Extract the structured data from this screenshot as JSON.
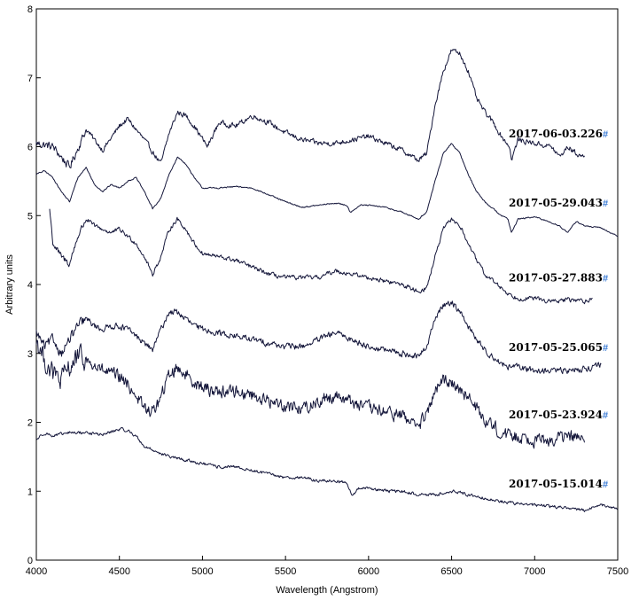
{
  "chart_data": {
    "type": "line",
    "title": "",
    "xlabel": "Wavelength (Angstrom)",
    "ylabel": "Arbitrary units",
    "xlim": [
      4000,
      7500
    ],
    "ylim": [
      0,
      8
    ],
    "xticks": [
      "4000",
      "4500",
      "5000",
      "5500",
      "6000",
      "6500",
      "7000",
      "7500"
    ],
    "yticks": [
      "0",
      "1",
      "2",
      "3",
      "4",
      "5",
      "6",
      "7",
      "8"
    ],
    "grid": false,
    "legend": "inline labels at right end of each spectrum",
    "label_marker": "#",
    "series": [
      {
        "name": "2017-06-03.226",
        "color": "#14163a",
        "noise": 0.06,
        "x": [
          4000,
          4100,
          4200,
          4300,
          4400,
          4500,
          4550,
          4650,
          4750,
          4800,
          4850,
          4900,
          4950,
          5030,
          5100,
          5200,
          5300,
          5400,
          5500,
          5600,
          5700,
          5800,
          5900,
          6000,
          6100,
          6200,
          6300,
          6350,
          6400,
          6450,
          6500,
          6550,
          6600,
          6650,
          6700,
          6750,
          6800,
          6850,
          6860,
          6900,
          7000,
          7100,
          7150,
          7200,
          7250,
          7300
        ],
        "y": [
          6.05,
          6.0,
          5.7,
          6.25,
          5.95,
          6.3,
          6.4,
          6.1,
          5.75,
          6.2,
          6.5,
          6.45,
          6.3,
          6.0,
          6.35,
          6.3,
          6.45,
          6.35,
          6.2,
          6.1,
          6.05,
          6.05,
          6.1,
          6.15,
          6.05,
          5.95,
          5.8,
          5.9,
          6.6,
          7.1,
          7.4,
          7.35,
          7.1,
          6.7,
          6.5,
          6.35,
          6.15,
          6.0,
          5.8,
          6.1,
          6.05,
          6.0,
          5.85,
          6.0,
          5.9,
          5.85
        ]
      },
      {
        "name": "2017-05-29.043",
        "color": "#14163a",
        "noise": 0.015,
        "x": [
          4000,
          4050,
          4100,
          4150,
          4200,
          4250,
          4300,
          4350,
          4400,
          4450,
          4500,
          4550,
          4600,
          4650,
          4700,
          4750,
          4800,
          4850,
          4900,
          4950,
          5000,
          5100,
          5200,
          5300,
          5400,
          5500,
          5600,
          5700,
          5800,
          5870,
          5890,
          5950,
          6000,
          6100,
          6200,
          6300,
          6350,
          6400,
          6450,
          6500,
          6550,
          6600,
          6650,
          6700,
          6750,
          6800,
          6840,
          6860,
          6900,
          7000,
          7100,
          7150,
          7200,
          7250,
          7300,
          7400,
          7500
        ],
        "y": [
          5.6,
          5.65,
          5.55,
          5.35,
          5.2,
          5.55,
          5.7,
          5.45,
          5.35,
          5.45,
          5.4,
          5.5,
          5.55,
          5.35,
          5.1,
          5.25,
          5.6,
          5.85,
          5.75,
          5.55,
          5.4,
          5.4,
          5.42,
          5.4,
          5.3,
          5.2,
          5.12,
          5.15,
          5.18,
          5.15,
          5.05,
          5.15,
          5.15,
          5.12,
          5.05,
          4.95,
          5.05,
          5.5,
          5.9,
          6.05,
          5.9,
          5.6,
          5.35,
          5.2,
          5.1,
          5.0,
          4.95,
          4.75,
          4.95,
          4.98,
          4.9,
          4.85,
          4.75,
          4.92,
          4.85,
          4.82,
          4.7
        ]
      },
      {
        "name": "2017-05-27.883",
        "color": "#14163a",
        "noise": 0.05,
        "x": [
          4080,
          4100,
          4150,
          4200,
          4250,
          4300,
          4350,
          4400,
          4450,
          4500,
          4550,
          4600,
          4650,
          4700,
          4750,
          4800,
          4850,
          4900,
          4950,
          5000,
          5100,
          5200,
          5300,
          5400,
          5500,
          5600,
          5700,
          5800,
          5900,
          6000,
          6100,
          6200,
          6300,
          6350,
          6400,
          6450,
          6500,
          6550,
          6600,
          6650,
          6700,
          6750,
          6800,
          6850,
          6900,
          7000,
          7100,
          7200,
          7300,
          7350
        ],
        "y": [
          5.1,
          4.6,
          4.4,
          4.3,
          4.7,
          4.95,
          4.85,
          4.8,
          4.75,
          4.8,
          4.7,
          4.6,
          4.4,
          4.15,
          4.4,
          4.8,
          4.95,
          4.8,
          4.6,
          4.45,
          4.4,
          4.35,
          4.25,
          4.15,
          4.1,
          4.1,
          4.1,
          4.2,
          4.15,
          4.1,
          4.05,
          4.0,
          3.9,
          3.95,
          4.4,
          4.8,
          4.95,
          4.85,
          4.6,
          4.35,
          4.15,
          4.05,
          3.95,
          3.85,
          3.8,
          3.8,
          3.75,
          3.78,
          3.76,
          3.8
        ]
      },
      {
        "name": "2017-05-25.065",
        "color": "#14163a",
        "noise": 0.07,
        "x": [
          4000,
          4050,
          4100,
          4150,
          4200,
          4250,
          4300,
          4350,
          4400,
          4450,
          4500,
          4550,
          4600,
          4650,
          4700,
          4750,
          4800,
          4850,
          4900,
          4950,
          5000,
          5100,
          5200,
          5300,
          5400,
          5500,
          5600,
          5700,
          5800,
          5900,
          6000,
          6100,
          6200,
          6300,
          6350,
          6400,
          6450,
          6500,
          6550,
          6600,
          6650,
          6700,
          6750,
          6800,
          6850,
          6900,
          7000,
          7100,
          7200,
          7300,
          7350,
          7400
        ],
        "y": [
          3.3,
          3.1,
          3.2,
          3.0,
          3.2,
          3.4,
          3.5,
          3.4,
          3.35,
          3.4,
          3.4,
          3.35,
          3.25,
          3.15,
          3.05,
          3.35,
          3.6,
          3.6,
          3.5,
          3.4,
          3.35,
          3.3,
          3.25,
          3.2,
          3.15,
          3.1,
          3.1,
          3.2,
          3.3,
          3.2,
          3.1,
          3.05,
          3.0,
          2.95,
          3.1,
          3.5,
          3.7,
          3.75,
          3.6,
          3.4,
          3.2,
          3.05,
          2.95,
          2.85,
          2.8,
          2.8,
          2.75,
          2.75,
          2.75,
          2.78,
          2.8,
          2.85
        ]
      },
      {
        "name": "2017-05-23.924",
        "color": "#14163a",
        "noise": 0.15,
        "x": [
          4000,
          4050,
          4100,
          4150,
          4200,
          4250,
          4300,
          4350,
          4400,
          4450,
          4500,
          4550,
          4600,
          4650,
          4700,
          4750,
          4800,
          4850,
          4900,
          4950,
          5000,
          5100,
          5200,
          5300,
          5400,
          5500,
          5600,
          5700,
          5800,
          5900,
          6000,
          6100,
          6200,
          6300,
          6350,
          6400,
          6450,
          6500,
          6550,
          6600,
          6650,
          6700,
          6750,
          6800,
          6850,
          6900,
          7000,
          7100,
          7200,
          7300
        ],
        "y": [
          3.2,
          2.9,
          2.7,
          2.6,
          2.8,
          2.95,
          2.9,
          2.8,
          2.75,
          2.7,
          2.65,
          2.55,
          2.4,
          2.2,
          2.15,
          2.35,
          2.7,
          2.8,
          2.7,
          2.6,
          2.5,
          2.45,
          2.45,
          2.4,
          2.3,
          2.25,
          2.2,
          2.3,
          2.4,
          2.3,
          2.2,
          2.15,
          2.1,
          1.95,
          2.1,
          2.45,
          2.6,
          2.6,
          2.5,
          2.35,
          2.2,
          2.05,
          1.95,
          1.85,
          1.8,
          1.8,
          1.75,
          1.75,
          1.8,
          1.75
        ]
      },
      {
        "name": "2017-05-15.014",
        "color": "#14163a",
        "noise": 0.035,
        "x": [
          4000,
          4050,
          4100,
          4200,
          4300,
          4400,
          4500,
          4550,
          4600,
          4650,
          4700,
          4800,
          4900,
          5000,
          5100,
          5200,
          5300,
          5400,
          5500,
          5600,
          5700,
          5800,
          5870,
          5900,
          5950,
          6000,
          6100,
          6200,
          6300,
          6400,
          6500,
          6550,
          6600,
          6700,
          6800,
          6900,
          7000,
          7100,
          7200,
          7300,
          7400,
          7500
        ],
        "y": [
          1.75,
          1.85,
          1.8,
          1.85,
          1.85,
          1.82,
          1.9,
          1.88,
          1.8,
          1.65,
          1.6,
          1.5,
          1.45,
          1.4,
          1.35,
          1.35,
          1.3,
          1.25,
          1.2,
          1.2,
          1.15,
          1.15,
          1.12,
          0.95,
          1.05,
          1.05,
          1.0,
          1.0,
          0.95,
          0.95,
          1.0,
          0.98,
          0.95,
          0.9,
          0.85,
          0.82,
          0.8,
          0.78,
          0.76,
          0.72,
          0.8,
          0.75
        ]
      }
    ]
  }
}
